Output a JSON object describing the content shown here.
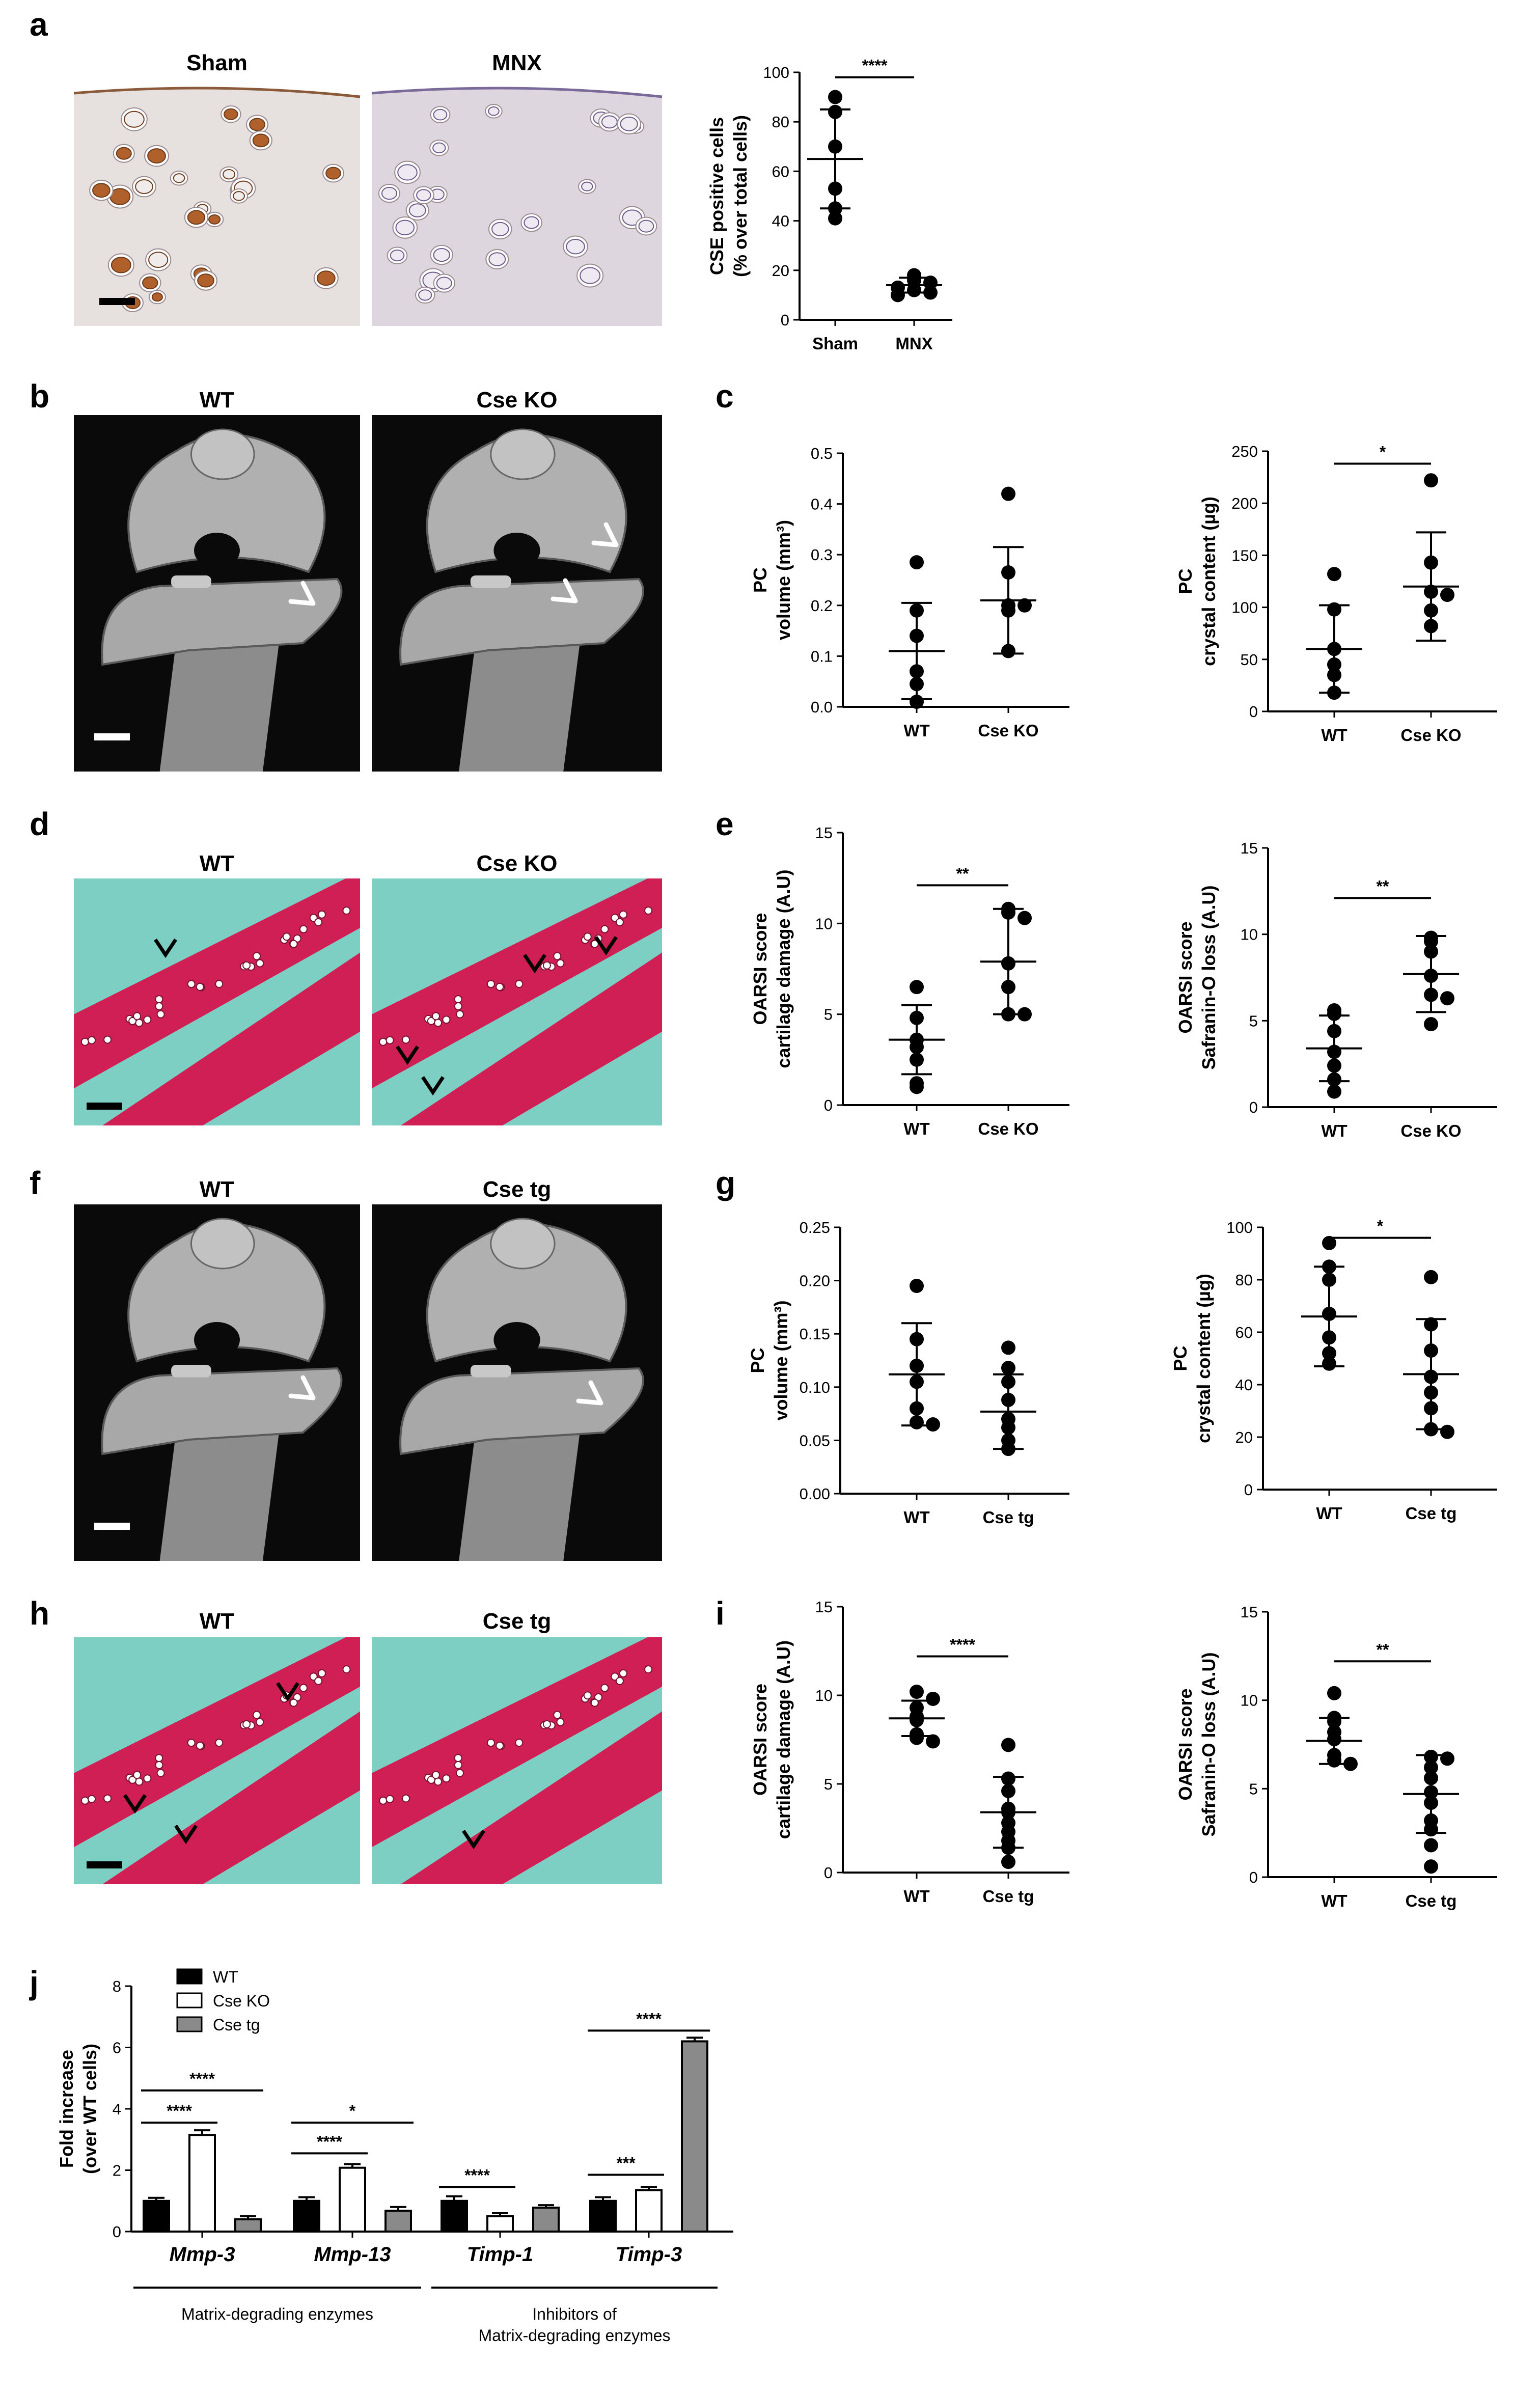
{
  "colors": {
    "axis": "#000000",
    "micro_bg": "#0a0a0a",
    "bone": "#9a9a9a",
    "ihc_bg": "#e6e0df",
    "ihc_stain": "#b0602a",
    "mnx_bg": "#ddd6df",
    "teal": "#7dcfc4",
    "cartilage": "#d01f55",
    "bar_wt": "#000000",
    "bar_ko": "#ffffff",
    "bar_tg": "#8a8a8a",
    "arrow_white": "#ffffff",
    "arrow_black": "#000000"
  },
  "panel_labels": [
    "a",
    "b",
    "c",
    "d",
    "e",
    "f",
    "g",
    "h",
    "i",
    "j"
  ],
  "images": {
    "a": {
      "titles": [
        "Sham",
        "MNX"
      ],
      "type": "ihc"
    },
    "b": {
      "titles": [
        "WT",
        "Cse KO"
      ],
      "type": "microct"
    },
    "d": {
      "titles": [
        "WT",
        "Cse KO"
      ],
      "type": "safranin"
    },
    "f": {
      "titles": [
        "WT",
        "Cse tg"
      ],
      "type": "microct"
    },
    "h": {
      "titles": [
        "WT",
        "Cse tg"
      ],
      "type": "safranin"
    }
  },
  "chart_data": [
    {
      "id": "a",
      "type": "scatter",
      "ylabel": [
        "CSE positive cells",
        "(% over total cells)"
      ],
      "categories": [
        "Sham",
        "MNX"
      ],
      "yticks": [
        "0",
        "20",
        "40",
        "60",
        "80",
        "100"
      ],
      "ylim": [
        0,
        100
      ],
      "points": [
        [
          90,
          84,
          70,
          53,
          45,
          41
        ],
        [
          18,
          16,
          15,
          13,
          12,
          11,
          10
        ]
      ],
      "mean": [
        65,
        14
      ],
      "sd": [
        20,
        3
      ],
      "sig": [
        {
          "from": 0,
          "to": 1,
          "label": "****",
          "y": 98
        }
      ]
    },
    {
      "id": "c1",
      "type": "scatter",
      "ylabel": [
        "PC",
        "volume (mm³)"
      ],
      "categories": [
        "WT",
        "Cse KO"
      ],
      "yticks": [
        "0.0",
        "0.1",
        "0.2",
        "0.3",
        "0.4",
        "0.5"
      ],
      "ylim": [
        0,
        0.5
      ],
      "points": [
        [
          0.285,
          0.19,
          0.14,
          0.07,
          0.045,
          0.01
        ],
        [
          0.42,
          0.265,
          0.2,
          0.2,
          0.19,
          0.11
        ]
      ],
      "mean": [
        0.11,
        0.21
      ],
      "sd": [
        0.095,
        0.105
      ],
      "sig": []
    },
    {
      "id": "c2",
      "type": "scatter",
      "ylabel": [
        "PC",
        "crystal content (µg)"
      ],
      "categories": [
        "WT",
        "Cse KO"
      ],
      "yticks": [
        "0",
        "50",
        "100",
        "150",
        "200",
        "250"
      ],
      "ylim": [
        0,
        250
      ],
      "points": [
        [
          132,
          98,
          60,
          45,
          35,
          18
        ],
        [
          222,
          143,
          115,
          112,
          97,
          82
        ]
      ],
      "mean": [
        60,
        120
      ],
      "sd": [
        42,
        52
      ],
      "sig": [
        {
          "from": 0,
          "to": 1,
          "label": "*",
          "y": 238
        }
      ]
    },
    {
      "id": "e1",
      "type": "scatter",
      "ylabel": [
        "OARSI score",
        "cartilage damage (A.U)"
      ],
      "categories": [
        "WT",
        "Cse KO"
      ],
      "yticks": [
        "0",
        "5",
        "10",
        "15"
      ],
      "ylim": [
        0,
        15
      ],
      "points": [
        [
          6.5,
          4.8,
          3.6,
          3.2,
          2.5,
          1.2,
          1.0
        ],
        [
          10.8,
          10.6,
          10.3,
          7.8,
          6.5,
          5.0,
          5.0
        ]
      ],
      "mean": [
        3.6,
        7.9
      ],
      "sd": [
        1.9,
        2.9
      ],
      "sig": [
        {
          "from": 0,
          "to": 1,
          "label": "**",
          "y": 12.1
        }
      ]
    },
    {
      "id": "e2",
      "type": "scatter",
      "ylabel": [
        "OARSI score",
        "Safranin-O loss (A.U)"
      ],
      "categories": [
        "WT",
        "Cse KO"
      ],
      "yticks": [
        "0",
        "5",
        "10",
        "15"
      ],
      "ylim": [
        0,
        15
      ],
      "points": [
        [
          5.6,
          5.4,
          4.4,
          3.2,
          2.4,
          1.6,
          0.9
        ],
        [
          9.8,
          9.6,
          9.0,
          7.6,
          6.5,
          6.3,
          4.8
        ]
      ],
      "mean": [
        3.4,
        7.7
      ],
      "sd": [
        1.9,
        2.2
      ],
      "sig": [
        {
          "from": 0,
          "to": 1,
          "label": "**",
          "y": 12.1
        }
      ]
    },
    {
      "id": "g1",
      "type": "scatter",
      "ylabel": [
        "PC",
        "volume (mm³)"
      ],
      "categories": [
        "WT",
        "Cse tg"
      ],
      "yticks": [
        "0.00",
        "0.05",
        "0.10",
        "0.15",
        "0.20",
        "0.25"
      ],
      "ylim": [
        0,
        0.25
      ],
      "points": [
        [
          0.195,
          0.145,
          0.12,
          0.105,
          0.08,
          0.067,
          0.065
        ],
        [
          0.137,
          0.118,
          0.105,
          0.088,
          0.07,
          0.062,
          0.05,
          0.042
        ]
      ],
      "mean": [
        0.112,
        0.077
      ],
      "sd": [
        0.048,
        0.035
      ],
      "sig": []
    },
    {
      "id": "g2",
      "type": "scatter",
      "ylabel": [
        "PC",
        "crystal content (µg)"
      ],
      "categories": [
        "WT",
        "Cse tg"
      ],
      "yticks": [
        "0",
        "20",
        "40",
        "60",
        "80",
        "100"
      ],
      "ylim": [
        0,
        100
      ],
      "points": [
        [
          94,
          85,
          80,
          67,
          58,
          52,
          48
        ],
        [
          81,
          63,
          53,
          43,
          37,
          31,
          23,
          22
        ]
      ],
      "mean": [
        66,
        44
      ],
      "sd": [
        19,
        21
      ],
      "sig": [
        {
          "from": 0,
          "to": 1,
          "label": "*",
          "y": 96
        }
      ]
    },
    {
      "id": "i1",
      "type": "scatter",
      "ylabel": [
        "OARSI score",
        "cartilage damage (A.U)"
      ],
      "categories": [
        "WT",
        "Cse tg"
      ],
      "yticks": [
        "0",
        "5",
        "10",
        "15"
      ],
      "ylim": [
        0,
        15
      ],
      "points": [
        [
          10.2,
          9.8,
          9.3,
          8.8,
          8.6,
          7.8,
          7.6,
          7.4
        ],
        [
          7.2,
          5.3,
          4.6,
          3.6,
          3.4,
          2.8,
          2.3,
          1.8,
          1.4,
          0.6
        ]
      ],
      "mean": [
        8.7,
        3.4
      ],
      "sd": [
        1.0,
        2.0
      ],
      "sig": [
        {
          "from": 0,
          "to": 1,
          "label": "****",
          "y": 12.2
        }
      ]
    },
    {
      "id": "i2",
      "type": "scatter",
      "ylabel": [
        "OARSI score",
        "Safranin-O loss (A.U)"
      ],
      "categories": [
        "WT",
        "Cse tg"
      ],
      "yticks": [
        "0",
        "5",
        "10",
        "15"
      ],
      "ylim": [
        0,
        15
      ],
      "points": [
        [
          10.4,
          9.0,
          8.8,
          8.2,
          7.8,
          6.9,
          6.6,
          6.4
        ],
        [
          6.8,
          6.7,
          6.2,
          5.6,
          4.8,
          4.2,
          3.2,
          2.7,
          1.8,
          0.6
        ]
      ],
      "mean": [
        7.7,
        4.7
      ],
      "sd": [
        1.3,
        2.2
      ],
      "sig": [
        {
          "from": 0,
          "to": 1,
          "label": "**",
          "y": 12.2
        }
      ]
    },
    {
      "id": "j",
      "type": "bar",
      "ylabel": [
        "Fold increase",
        "(over WT cells)"
      ],
      "yticks": [
        "0",
        "2",
        "4",
        "6",
        "8"
      ],
      "ylim": [
        0,
        8
      ],
      "categories": [
        "Mmp-3",
        "Mmp-13",
        "Timp-1",
        "Timp-3"
      ],
      "series": [
        {
          "name": "WT",
          "values": [
            1.0,
            1.0,
            1.0,
            1.0
          ],
          "err": [
            0.1,
            0.12,
            0.15,
            0.12
          ]
        },
        {
          "name": "Cse KO",
          "values": [
            3.15,
            2.08,
            0.5,
            1.35
          ],
          "err": [
            0.15,
            0.12,
            0.1,
            0.1
          ]
        },
        {
          "name": "Cse tg",
          "values": [
            0.4,
            0.68,
            0.78,
            6.2
          ],
          "err": [
            0.1,
            0.12,
            0.08,
            0.12
          ]
        }
      ],
      "sig": [
        {
          "cat": 0,
          "from": 0,
          "to": 1,
          "label": "****",
          "y": 3.55
        },
        {
          "cat": 0,
          "from": 0,
          "to": 2,
          "label": "****",
          "y": 4.6
        },
        {
          "cat": 1,
          "from": 0,
          "to": 1,
          "label": "****",
          "y": 2.55
        },
        {
          "cat": 1,
          "from": 0,
          "to": 2,
          "label": "*",
          "y": 3.55
        },
        {
          "cat": 2,
          "from": 0,
          "to": 1,
          "label": "****",
          "y": 1.45
        },
        {
          "cat": 3,
          "from": 0,
          "to": 1,
          "label": "***",
          "y": 1.85
        },
        {
          "cat": 3,
          "from": 0,
          "to": 2,
          "label": "****",
          "y": 6.55
        }
      ],
      "groups": [
        {
          "lines": [
            "Matrix-degrading enzymes"
          ],
          "from_cat": 0,
          "to_cat": 1
        },
        {
          "lines": [
            "Inhibitors of",
            "Matrix-degrading enzymes"
          ],
          "from_cat": 2,
          "to_cat": 3
        }
      ]
    }
  ]
}
